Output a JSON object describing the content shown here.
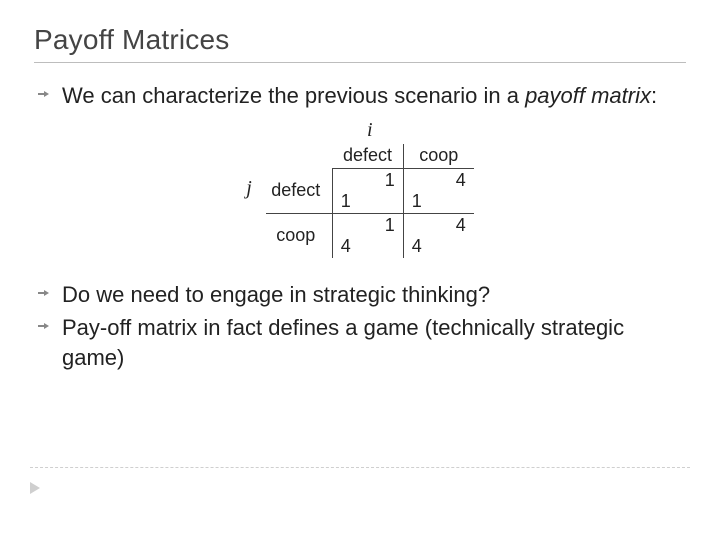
{
  "title": "Payoff Matrices",
  "bullets": {
    "first": {
      "lead": "We can characterize the previous scenario in a ",
      "em": "payoff matrix",
      "trail": ":"
    },
    "second": "Do we need to engage in strategic thinking?",
    "third": "Pay-off matrix in fact defines a game (technically strategic game)"
  },
  "matrix": {
    "i_label": "i",
    "j_label": "j",
    "col_headers": [
      "defect",
      "coop"
    ],
    "row_headers": [
      "defect",
      "coop"
    ],
    "cells": {
      "r0c0_tr": "1",
      "r0c0_bl": "1",
      "r0c1_tr": "4",
      "r0c1_bl": "1",
      "r1c0_tr": "1",
      "r1c0_bl": "4",
      "r1c1_tr": "4",
      "r1c1_bl": "4"
    }
  },
  "style": {
    "title_color": "#444444",
    "text_color": "#222222",
    "rule_color": "#bdbdbd",
    "matrix_border_color": "#444444",
    "bullet_color": "#888888",
    "background": "#ffffff",
    "title_fontsize": 28,
    "body_fontsize": 22,
    "matrix_fontsize": 18,
    "i_j_font": "Times New Roman italic"
  }
}
